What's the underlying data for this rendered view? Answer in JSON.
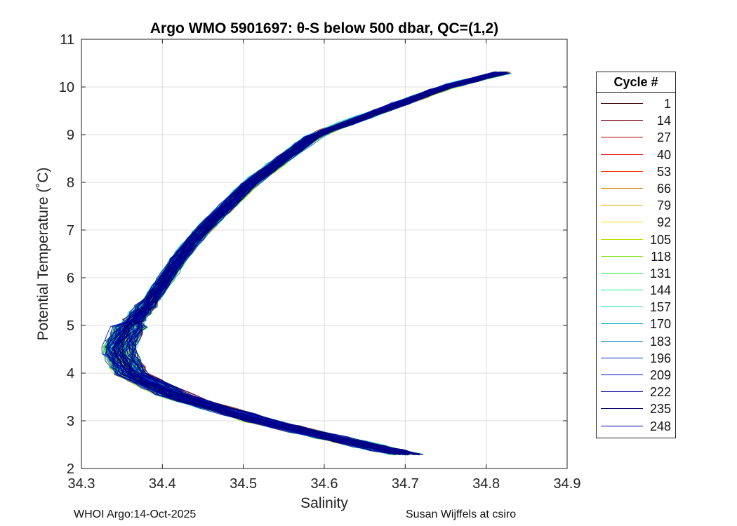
{
  "chart_data": {
    "type": "line",
    "title": "Argo WMO 5901697: θ-S below 500 dbar,  QC=(1,2)",
    "xlabel": "Salinity",
    "ylabel": "Potential Temperature (˚C)",
    "xlim": [
      34.3,
      34.9
    ],
    "ylim": [
      2,
      11
    ],
    "x_ticks": [
      "34.3",
      "34.4",
      "34.5",
      "34.6",
      "34.7",
      "34.8",
      "34.9"
    ],
    "y_ticks": [
      "2",
      "3",
      "4",
      "5",
      "6",
      "7",
      "8",
      "9",
      "10",
      "11"
    ],
    "grid": true,
    "legend_position": "outside-right",
    "legend_title": "Cycle #",
    "legend": [
      {
        "label": "1",
        "color": "#3a0000"
      },
      {
        "label": "14",
        "color": "#700000"
      },
      {
        "label": "27",
        "color": "#b00000"
      },
      {
        "label": "40",
        "color": "#e00000"
      },
      {
        "label": "53",
        "color": "#ff3000"
      },
      {
        "label": "66",
        "color": "#d08000"
      },
      {
        "label": "79",
        "color": "#e0b000"
      },
      {
        "label": "92",
        "color": "#ffe000"
      },
      {
        "label": "105",
        "color": "#c0e000"
      },
      {
        "label": "118",
        "color": "#70e000"
      },
      {
        "label": "131",
        "color": "#20e040"
      },
      {
        "label": "144",
        "color": "#20e090"
      },
      {
        "label": "157",
        "color": "#20e0c0"
      },
      {
        "label": "170",
        "color": "#10b0c0"
      },
      {
        "label": "183",
        "color": "#0070b0"
      },
      {
        "label": "196",
        "color": "#0030b0"
      },
      {
        "label": "209",
        "color": "#0010c0"
      },
      {
        "label": "222",
        "color": "#000090"
      },
      {
        "label": "235",
        "color": "#000060"
      },
      {
        "label": "248",
        "color": "#0000a0"
      }
    ],
    "profile_envelope": {
      "theta": [
        10.3,
        10.0,
        9.5,
        9.0,
        8.5,
        8.0,
        7.5,
        7.0,
        6.5,
        6.0,
        5.5,
        5.0,
        4.5,
        4.0,
        3.5,
        3.0,
        2.6,
        2.3
      ],
      "salinity_center": [
        34.82,
        34.75,
        34.67,
        34.59,
        34.55,
        34.51,
        34.48,
        34.45,
        34.425,
        34.405,
        34.385,
        34.36,
        34.345,
        34.36,
        34.42,
        34.52,
        34.62,
        34.7
      ]
    }
  },
  "footer": {
    "left": "WHOI Argo:14-Oct-2025",
    "right": "Susan Wijffels at csiro"
  }
}
